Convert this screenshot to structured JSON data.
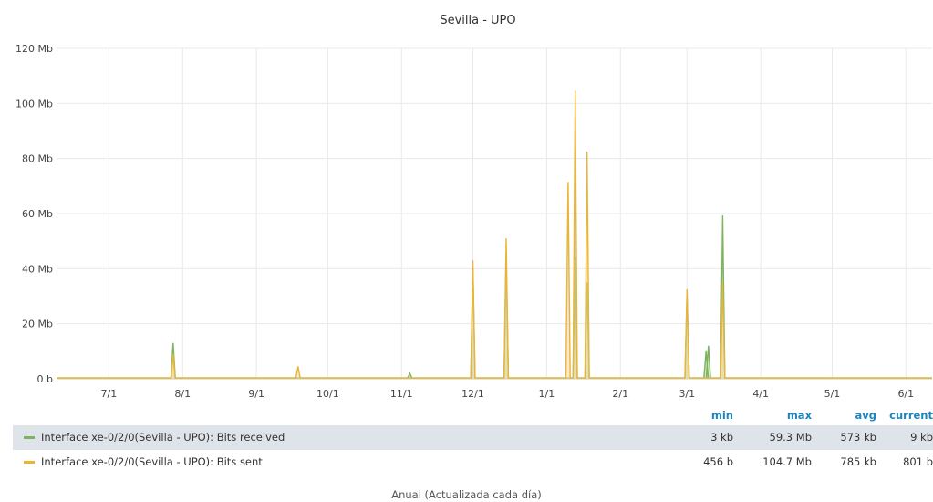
{
  "chart_data": {
    "type": "area",
    "title": "Sevilla - UPO",
    "y_ticks": [
      "0 b",
      "20 Mb",
      "40 Mb",
      "60 Mb",
      "80 Mb",
      "100 Mb",
      "120 Mb"
    ],
    "y_tick_values": [
      0,
      20,
      40,
      60,
      80,
      100,
      120
    ],
    "ylim": [
      0,
      120
    ],
    "y_unit": "Mb",
    "x_ticks": [
      "7/1",
      "8/1",
      "9/1",
      "10/1",
      "11/1",
      "12/1",
      "1/1",
      "2/1",
      "3/1",
      "4/1",
      "5/1",
      "6/1"
    ],
    "x_tick_days": [
      17,
      48,
      79,
      109,
      140,
      170,
      201,
      232,
      260,
      291,
      321,
      352
    ],
    "x_range_days": [
      -5,
      363
    ],
    "grid": true,
    "series": [
      {
        "name": "Interface xe-0/2/0(Sevilla - UPO): Bits received",
        "color": "#7cb35f",
        "fill": "#b5d59a",
        "spikes": [
          {
            "day": 44,
            "value": 13
          },
          {
            "day": 143.5,
            "value": 2
          },
          {
            "day": 170,
            "value": 40
          },
          {
            "day": 184,
            "value": 45
          },
          {
            "day": 213,
            "value": 44
          },
          {
            "day": 218,
            "value": 35
          },
          {
            "day": 260,
            "value": 30
          },
          {
            "day": 268,
            "value": 10
          },
          {
            "day": 269,
            "value": 12
          },
          {
            "day": 275,
            "value": 59.3
          }
        ]
      },
      {
        "name": "Interface xe-0/2/0(Sevilla - UPO): Bits sent",
        "color": "#e8b43a",
        "fill": "#f2d7a0",
        "spikes": [
          {
            "day": 44,
            "value": 9
          },
          {
            "day": 96.5,
            "value": 4.5
          },
          {
            "day": 170,
            "value": 43
          },
          {
            "day": 184,
            "value": 51
          },
          {
            "day": 210,
            "value": 71.5
          },
          {
            "day": 213,
            "value": 104.7
          },
          {
            "day": 218,
            "value": 82.5
          },
          {
            "day": 260,
            "value": 32.5
          },
          {
            "day": 275,
            "value": 35
          }
        ]
      }
    ]
  },
  "legend": {
    "headers": {
      "min": "min",
      "max": "max",
      "avg": "avg",
      "current": "current"
    },
    "rows": [
      {
        "name": "Interface xe-0/2/0(Sevilla - UPO): Bits received",
        "color": "#7cb35f",
        "min": "3 kb",
        "max": "59.3 Mb",
        "avg": "573 kb",
        "current": "9 kb"
      },
      {
        "name": "Interface xe-0/2/0(Sevilla - UPO): Bits sent",
        "color": "#e8b43a",
        "min": "456 b",
        "max": "104.7 Mb",
        "avg": "785 kb",
        "current": "801 b"
      }
    ]
  },
  "footer": "Anual (Actualizada cada día)"
}
